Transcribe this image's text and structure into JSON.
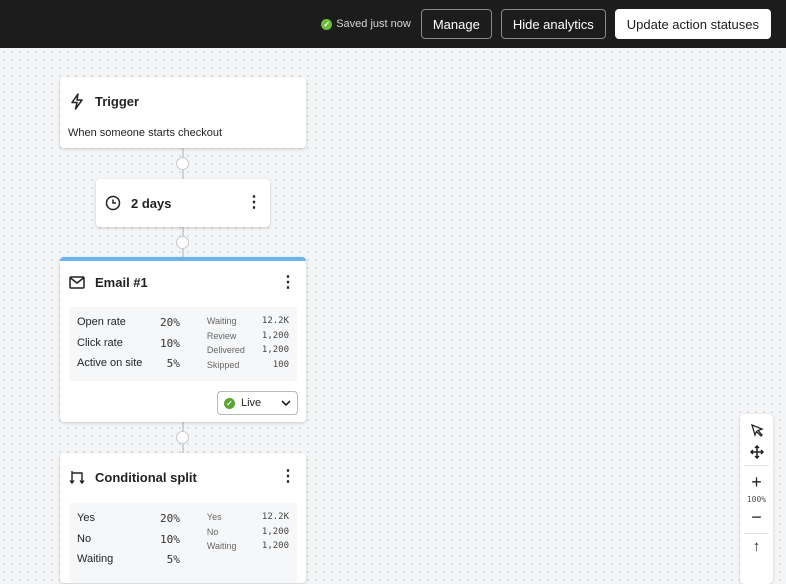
{
  "topbar": {
    "saved_status": "Saved just now",
    "manage": "Manage",
    "hide_analytics": "Hide analytics",
    "update_statuses": "Update action statuses"
  },
  "trigger": {
    "title": "Trigger",
    "description": "When someone starts checkout"
  },
  "delay": {
    "label": "2 days"
  },
  "email": {
    "title": "Email #1",
    "accent": "#6cb4ee",
    "metrics": [
      {
        "label": "Open rate",
        "value": "20%"
      },
      {
        "label": "Click rate",
        "value": "10%"
      },
      {
        "label": "Active on site",
        "value": "5%"
      }
    ],
    "counts": [
      {
        "label": "Waiting",
        "value": "12.2K"
      },
      {
        "label": "Review",
        "value": "1,200"
      },
      {
        "label": "Delivered",
        "value": "1,200"
      },
      {
        "label": "Skipped",
        "value": "100"
      }
    ],
    "status": "Live",
    "status_color": "#5aa52f"
  },
  "split": {
    "title": "Conditional split",
    "metrics": [
      {
        "label": "Yes",
        "value": "20%"
      },
      {
        "label": "No",
        "value": "10%"
      },
      {
        "label": "Waiting",
        "value": "5%"
      }
    ],
    "counts": [
      {
        "label": "Yes",
        "value": "12.2K"
      },
      {
        "label": "No",
        "value": "1,200"
      },
      {
        "label": "Waiting",
        "value": "1,200"
      }
    ]
  },
  "toolbar": {
    "zoom": "100%"
  }
}
